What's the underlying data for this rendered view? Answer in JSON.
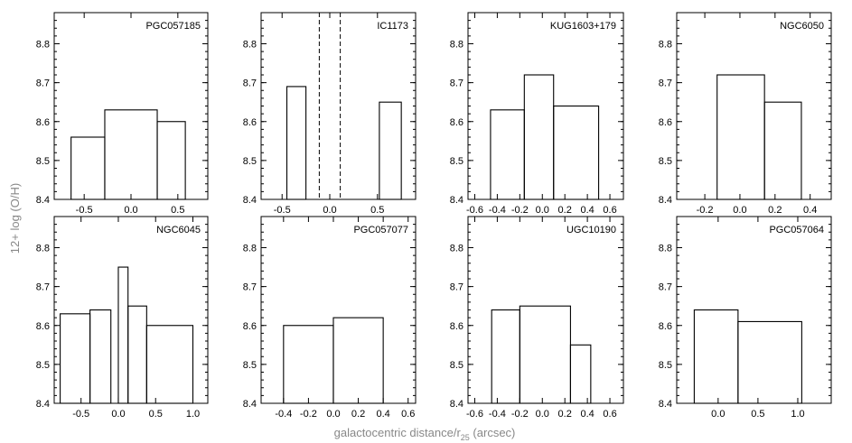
{
  "figure": {
    "ylabel": "12+ log (O/H)",
    "xlabel_main": "galactocentric distance/r",
    "xlabel_sub": "25",
    "xlabel_unit": " (arcsec)"
  },
  "chart_data": [
    {
      "type": "bar",
      "title": "PGC057185",
      "xlim": [
        -0.82,
        0.82
      ],
      "ylim": [
        8.4,
        8.88
      ],
      "xticks": [
        -0.5,
        0.0,
        0.5
      ],
      "xtick_labels": [
        "-0.5",
        "0.0",
        "0.5"
      ],
      "yticks": [
        8.4,
        8.5,
        8.6,
        8.7,
        8.8
      ],
      "ytick_labels": [
        "8.4",
        "8.5",
        "8.6",
        "8.7",
        "8.8"
      ],
      "bins": [
        {
          "x0": -0.64,
          "x1": -0.28,
          "value": 8.56
        },
        {
          "x0": -0.28,
          "x1": 0.28,
          "value": 8.63
        },
        {
          "x0": 0.28,
          "x1": 0.58,
          "value": 8.6
        }
      ]
    },
    {
      "type": "bar",
      "title": "IC1173",
      "xlim": [
        -0.72,
        0.9
      ],
      "ylim": [
        8.4,
        8.88
      ],
      "xticks": [
        -0.5,
        0.0,
        0.5
      ],
      "xtick_labels": [
        "-0.5",
        "0.0",
        "0.5"
      ],
      "yticks": [
        8.4,
        8.5,
        8.6,
        8.7,
        8.8
      ],
      "ytick_labels": [
        "8.4",
        "8.5",
        "8.6",
        "8.7",
        "8.8"
      ],
      "bins": [
        {
          "x0": -0.45,
          "x1": -0.25,
          "value": 8.69
        },
        {
          "x0": 0.52,
          "x1": 0.75,
          "value": 8.65
        }
      ],
      "dashed_lines": [
        -0.11,
        0.11
      ]
    },
    {
      "type": "bar",
      "title": "KUG1603+179",
      "xlim": [
        -0.66,
        0.72
      ],
      "ylim": [
        8.4,
        8.88
      ],
      "xticks": [
        -0.6,
        -0.4,
        -0.2,
        0.0,
        0.2,
        0.4,
        0.6
      ],
      "xtick_labels": [
        "-0.6",
        "-0.4",
        "-0.2",
        "0.0",
        "0.2",
        "0.4",
        "0.6"
      ],
      "yticks": [
        8.4,
        8.5,
        8.6,
        8.7,
        8.8
      ],
      "ytick_labels": [
        "8.4",
        "8.5",
        "8.6",
        "8.7",
        "8.8"
      ],
      "bins": [
        {
          "x0": -0.46,
          "x1": -0.16,
          "value": 8.63
        },
        {
          "x0": -0.16,
          "x1": 0.1,
          "value": 8.72
        },
        {
          "x0": 0.1,
          "x1": 0.5,
          "value": 8.64
        }
      ]
    },
    {
      "type": "bar",
      "title": "NGC6050",
      "xlim": [
        -0.36,
        0.52
      ],
      "ylim": [
        8.4,
        8.88
      ],
      "xticks": [
        -0.2,
        0.0,
        0.2,
        0.4
      ],
      "xtick_labels": [
        "-0.2",
        "0.0",
        "0.2",
        "0.4"
      ],
      "yticks": [
        8.4,
        8.5,
        8.6,
        8.7,
        8.8
      ],
      "ytick_labels": [
        "8.4",
        "8.5",
        "8.6",
        "8.7",
        "8.8"
      ],
      "bins": [
        {
          "x0": -0.13,
          "x1": 0.14,
          "value": 8.72
        },
        {
          "x0": 0.14,
          "x1": 0.35,
          "value": 8.65
        }
      ]
    },
    {
      "type": "bar",
      "title": "NGC6045",
      "xlim": [
        -0.86,
        1.2
      ],
      "ylim": [
        8.4,
        8.88
      ],
      "xticks": [
        -0.5,
        0.0,
        0.5,
        1.0
      ],
      "xtick_labels": [
        "-0.5",
        "0.0",
        "0.5",
        "1.0"
      ],
      "yticks": [
        8.4,
        8.5,
        8.6,
        8.7,
        8.8
      ],
      "ytick_labels": [
        "8.4",
        "8.5",
        "8.6",
        "8.7",
        "8.8"
      ],
      "bins": [
        {
          "x0": -0.78,
          "x1": -0.38,
          "value": 8.63
        },
        {
          "x0": -0.38,
          "x1": -0.1,
          "value": 8.64
        },
        {
          "x0": 0.0,
          "x1": 0.13,
          "value": 8.75
        },
        {
          "x0": 0.13,
          "x1": 0.38,
          "value": 8.65
        },
        {
          "x0": 0.38,
          "x1": 1.0,
          "value": 8.6
        }
      ]
    },
    {
      "type": "bar",
      "title": "PGC057077",
      "xlim": [
        -0.58,
        0.66
      ],
      "ylim": [
        8.4,
        8.88
      ],
      "xticks": [
        -0.4,
        -0.2,
        0.0,
        0.2,
        0.4,
        0.6
      ],
      "xtick_labels": [
        "-0.4",
        "-0.2",
        "0.0",
        "0.2",
        "0.4",
        "0.6"
      ],
      "yticks": [
        8.4,
        8.5,
        8.6,
        8.7,
        8.8
      ],
      "ytick_labels": [
        "8.4",
        "8.5",
        "8.6",
        "8.7",
        "8.8"
      ],
      "bins": [
        {
          "x0": -0.4,
          "x1": 0.0,
          "value": 8.6
        },
        {
          "x0": 0.0,
          "x1": 0.4,
          "value": 8.62
        }
      ]
    },
    {
      "type": "bar",
      "title": "UGC10190",
      "xlim": [
        -0.66,
        0.72
      ],
      "ylim": [
        8.4,
        8.88
      ],
      "xticks": [
        -0.6,
        -0.4,
        -0.2,
        0.0,
        0.2,
        0.4,
        0.6
      ],
      "xtick_labels": [
        "-0.6",
        "-0.4",
        "-0.2",
        "0.0",
        "0.2",
        "0.4",
        "0.6"
      ],
      "yticks": [
        8.4,
        8.5,
        8.6,
        8.7,
        8.8
      ],
      "ytick_labels": [
        "8.4",
        "8.5",
        "8.6",
        "8.7",
        "8.8"
      ],
      "bins": [
        {
          "x0": -0.45,
          "x1": -0.2,
          "value": 8.64
        },
        {
          "x0": -0.2,
          "x1": 0.25,
          "value": 8.65
        },
        {
          "x0": 0.25,
          "x1": 0.43,
          "value": 8.55
        }
      ]
    },
    {
      "type": "bar",
      "title": "PGC057064",
      "xlim": [
        -0.52,
        1.42
      ],
      "ylim": [
        8.4,
        8.88
      ],
      "xticks": [
        0.0,
        0.5,
        1.0
      ],
      "xtick_labels": [
        "0.0",
        "0.5",
        "1.0"
      ],
      "yticks": [
        8.4,
        8.5,
        8.6,
        8.7,
        8.8
      ],
      "ytick_labels": [
        "8.4",
        "8.5",
        "8.6",
        "8.7",
        "8.8"
      ],
      "bins": [
        {
          "x0": -0.3,
          "x1": 0.25,
          "value": 8.64
        },
        {
          "x0": 0.25,
          "x1": 1.05,
          "value": 8.61
        }
      ]
    }
  ]
}
